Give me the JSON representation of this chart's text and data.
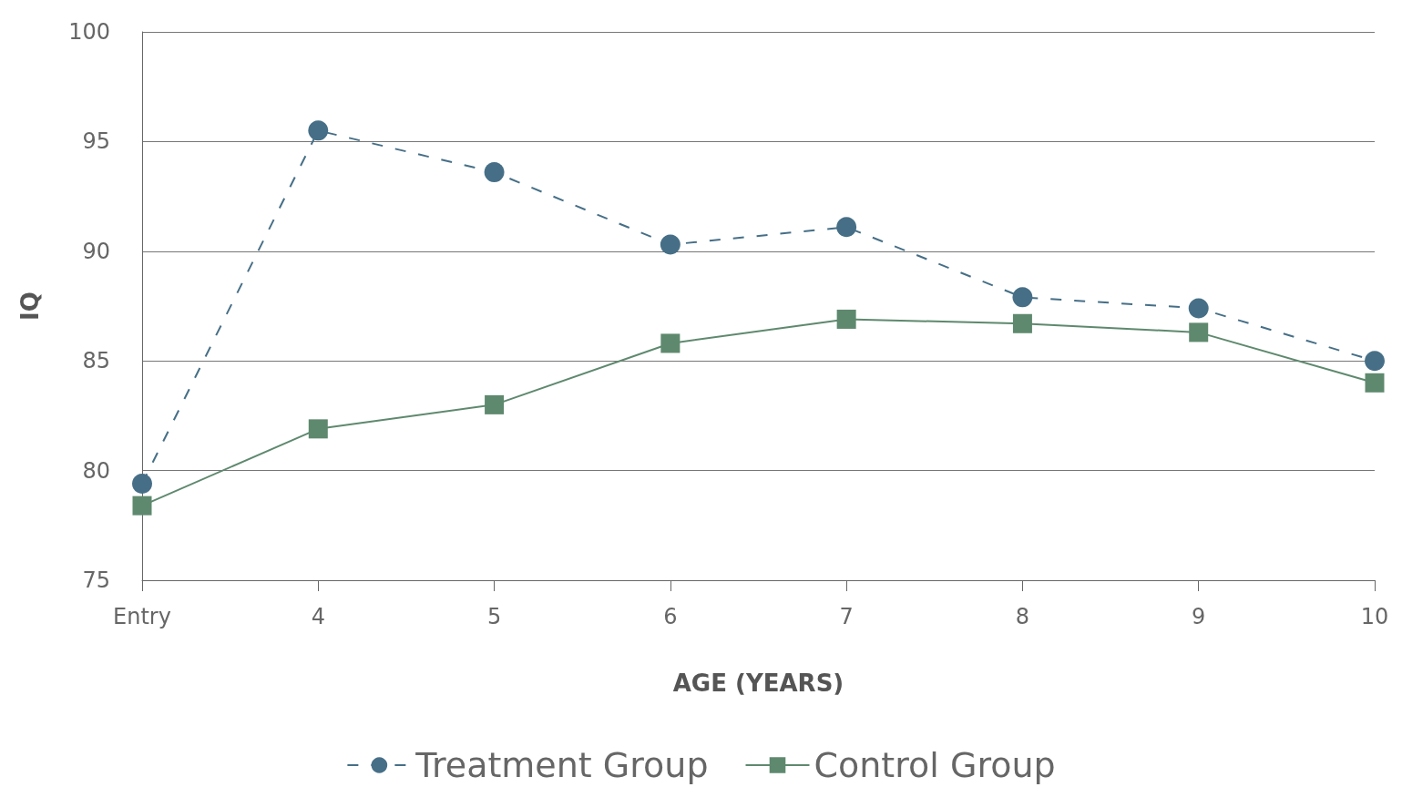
{
  "chart_data": {
    "type": "line",
    "xlabel": "AGE (YEARS)",
    "ylabel": "IQ",
    "categories": [
      "Entry",
      "4",
      "5",
      "6",
      "7",
      "8",
      "9",
      "10"
    ],
    "series": [
      {
        "name": "Treatment Group",
        "color": "#466f87",
        "marker": "circle",
        "line_style": "dashed",
        "values": [
          79.4,
          95.5,
          93.6,
          90.3,
          91.1,
          87.9,
          87.4,
          85.0
        ]
      },
      {
        "name": "Control Group",
        "color": "#5e896e",
        "marker": "square",
        "line_style": "solid",
        "values": [
          78.4,
          81.9,
          83.0,
          85.8,
          86.9,
          86.7,
          86.3,
          84.0
        ]
      }
    ],
    "ylim": [
      75,
      100
    ],
    "yticks": [
      75,
      80,
      85,
      90,
      95,
      100
    ],
    "grid": "y",
    "legend": "bottom"
  }
}
